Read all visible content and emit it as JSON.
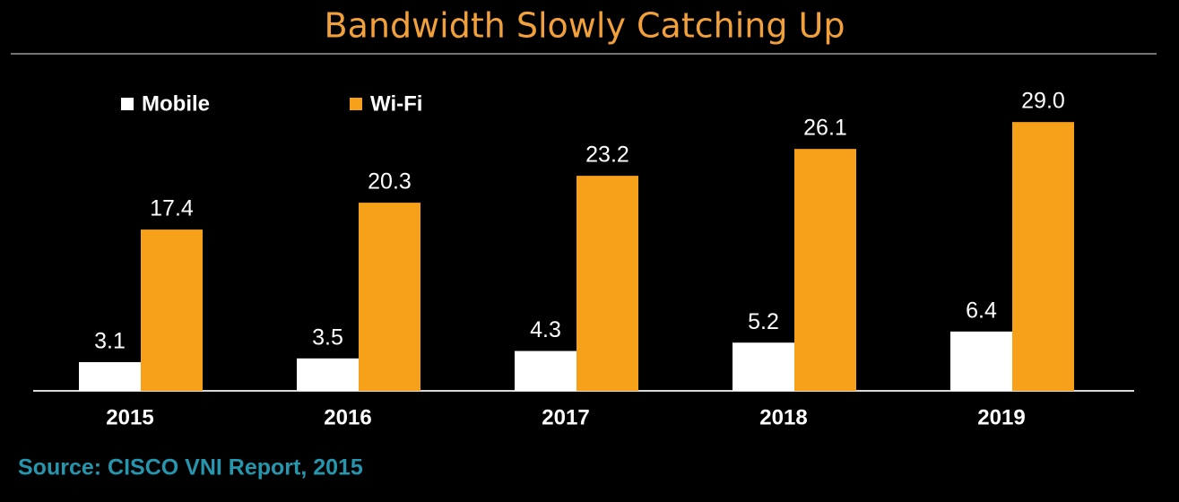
{
  "chart_data": {
    "type": "bar",
    "title": "Bandwidth Slowly Catching Up",
    "categories": [
      "2015",
      "2016",
      "2017",
      "2018",
      "2019"
    ],
    "series": [
      {
        "name": "Mobile",
        "color": "#ffffff",
        "values": [
          3.1,
          3.5,
          4.3,
          5.2,
          6.4
        ],
        "value_labels": [
          "3.1",
          "3.5",
          "4.3",
          "5.2",
          "6.4"
        ]
      },
      {
        "name": "Wi-Fi",
        "color": "#f7a11a",
        "values": [
          17.4,
          20.3,
          23.2,
          26.1,
          29.0
        ],
        "value_labels": [
          "17.4",
          "20.3",
          "23.2",
          "26.1",
          "29.0"
        ]
      }
    ],
    "source": "Source: CISCO VNI Report, 2015"
  }
}
